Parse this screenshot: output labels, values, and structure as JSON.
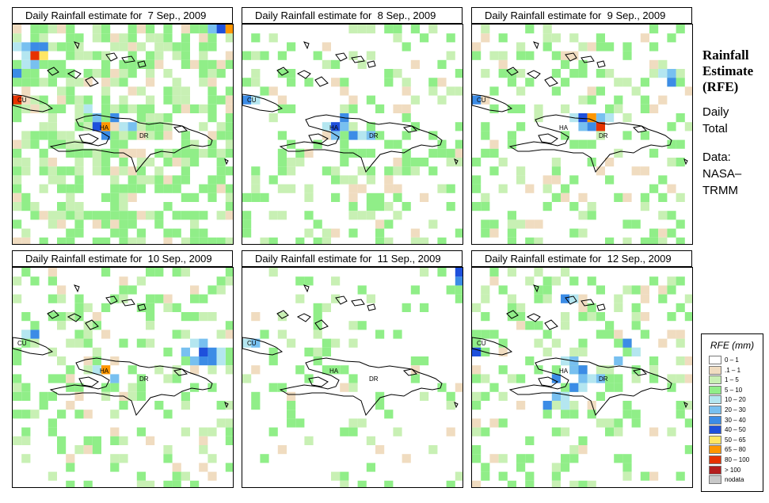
{
  "panels": [
    {
      "title": "Daily Rainfall estimate for  7 Sep., 2009"
    },
    {
      "title": "Daily Rainfall estimate for  8 Sep., 2009"
    },
    {
      "title": "Daily Rainfall estimate for  9 Sep., 2009"
    },
    {
      "title": "Daily Rainfall estimate for  10 Sep., 2009"
    },
    {
      "title": "Daily Rainfall estimate for  11 Sep., 2009"
    },
    {
      "title": "Daily Rainfall estimate for  12 Sep., 2009"
    }
  ],
  "map_labels": {
    "cuba": "CU",
    "haiti": "HA",
    "dominican_republic": "DR"
  },
  "side": {
    "title_line1": "Rainfall",
    "title_line2": "Estimate",
    "title_line3": "(RFE)",
    "period_line1": "Daily",
    "period_line2": "Total",
    "source_line1": "Data:",
    "source_line2": "NASA–",
    "source_line3": "TRMM"
  },
  "legend": {
    "title": "RFE (mm)",
    "items": [
      {
        "label": "0 – 1",
        "color": "#ffffff"
      },
      {
        "label": ".1 – 1",
        "color": "#f0dcc0"
      },
      {
        "label": "1 – 5",
        "color": "#c8f0b4"
      },
      {
        "label": "5 – 10",
        "color": "#90ee88"
      },
      {
        "label": "10 – 20",
        "color": "#b4e6f0"
      },
      {
        "label": "20 – 30",
        "color": "#78c0f0"
      },
      {
        "label": "30 – 40",
        "color": "#3c8ce6"
      },
      {
        "label": "40 – 50",
        "color": "#1e50dc"
      },
      {
        "label": "50 – 65",
        "color": "#ffe664"
      },
      {
        "label": "65 – 80",
        "color": "#ff9600"
      },
      {
        "label": "80 – 100",
        "color": "#e63200"
      },
      {
        "label": "> 100",
        "color": "#b41e1e"
      },
      {
        "label": "nodata",
        "color": "#c8c8c8"
      }
    ]
  },
  "colors": {
    "coast": "#000000",
    "frame": "#000000"
  }
}
